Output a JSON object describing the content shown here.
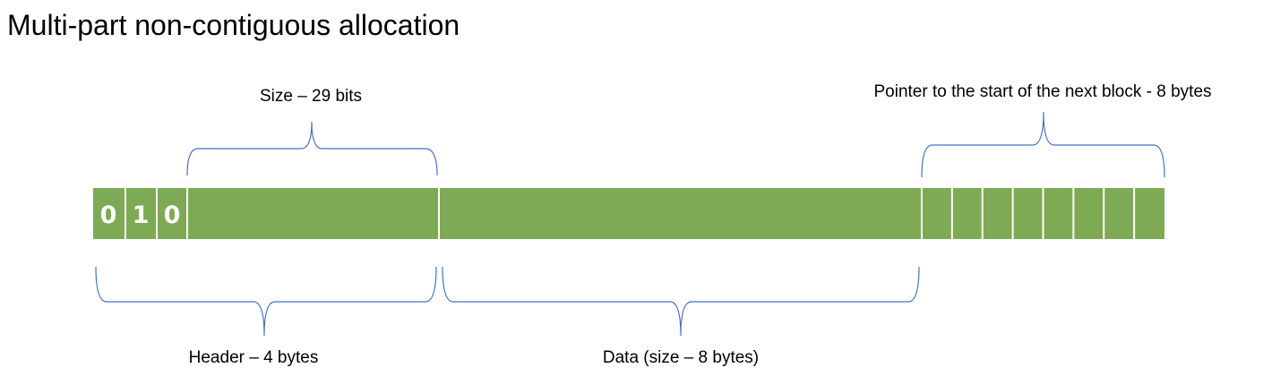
{
  "title": "Multi-part non-contiguous allocation",
  "colors": {
    "block_fill": "#7faa55",
    "divider": "#ffffff",
    "brace": "#4472c4",
    "text": "#000000"
  },
  "header_bits": [
    "0",
    "1",
    "0"
  ],
  "labels": {
    "size": "Size – 29 bits",
    "pointer": "Pointer to the start of the next block - 8 bytes",
    "header": "Header – 4 bytes",
    "data": "Data (size – 8 bytes)"
  },
  "pointer_byte_count": 8
}
